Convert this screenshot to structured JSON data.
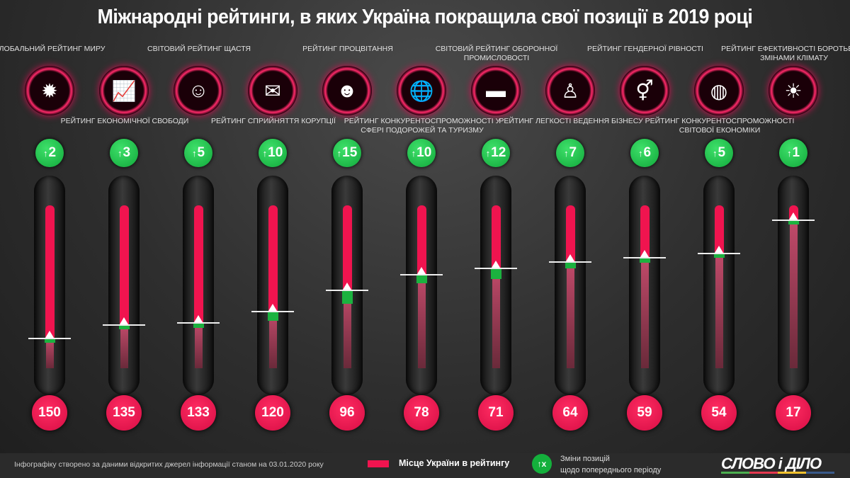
{
  "title": "Міжнародні рейтинги, в яких Україна покращила свої позиції в 2019 році",
  "chart_data": {
    "type": "bar",
    "title": "Міжнародні рейтинги, в яких Україна покращила свої позиції в 2019 році",
    "categories": [
      "Глобальний рейтинг миру",
      "Рейтинг економічної свободи",
      "Світовий рейтинг щастя",
      "Рейтинг сприйняття корупції",
      "Рейтинг процвітання",
      "Рейтинг конкурентоспроможності у сфері подорожей та туризму",
      "Світовий рейтинг оборонної промисловості",
      "Рейтинг легкості ведення бізнесу",
      "Рейтинг гендерної рівності",
      "Рейтинг конкурентоспроможності світової економіки",
      "Рейтинг ефективності боротьби зі змінами клімату"
    ],
    "series": [
      {
        "name": "Місце України в рейтингу",
        "values": [
          150,
          135,
          133,
          120,
          96,
          78,
          71,
          64,
          59,
          54,
          17
        ],
        "color": "#f0144f"
      },
      {
        "name": "Зміни позицій щодо попереднього періоду",
        "values": [
          2,
          3,
          5,
          10,
          15,
          10,
          12,
          7,
          6,
          5,
          1
        ],
        "color": "#14b03c"
      }
    ],
    "icons": [
      "explosion-icon",
      "growth-chart-icon",
      "smiley-icon",
      "money-envelope-icon",
      "celebrating-people-icon",
      "globe-plane-icon",
      "tank-icon",
      "businessman-icon",
      "gender-hands-icon",
      "world-economy-icon",
      "sun-thermometer-icon"
    ],
    "label_rows": [
      "top",
      "low",
      "top",
      "low",
      "top",
      "low",
      "top",
      "low",
      "top",
      "low",
      "top"
    ]
  },
  "labels": [
    "Глобальний рейтинг миру",
    "Рейтинг економічної свободи",
    "Світовий рейтинг щастя",
    "Рейтинг сприйняття корупції",
    "Рейтинг процвітання",
    "Рейтинг конкурентоспроможності у сфері подорожей та туризму",
    "Світовий рейтинг оборонної промисловості",
    "Рейтинг легкості ведення бізнесу",
    "Рейтинг гендерної рівності",
    "Рейтинг конкурентоспроможності світової економіки",
    "Рейтинг ефективності боротьби зі змінами клімату"
  ],
  "footer": {
    "source": "Інфографіку створено за даними відкритих джерел інформації станом на 03.01.2020 року",
    "legend_rank": "Місце України в рейтингу",
    "legend_change_badge": "↑x",
    "legend_change_line1": "Зміни позицій",
    "legend_change_line2": "щодо попереднього періоду",
    "logo": "СЛОВО і ДІЛО"
  }
}
